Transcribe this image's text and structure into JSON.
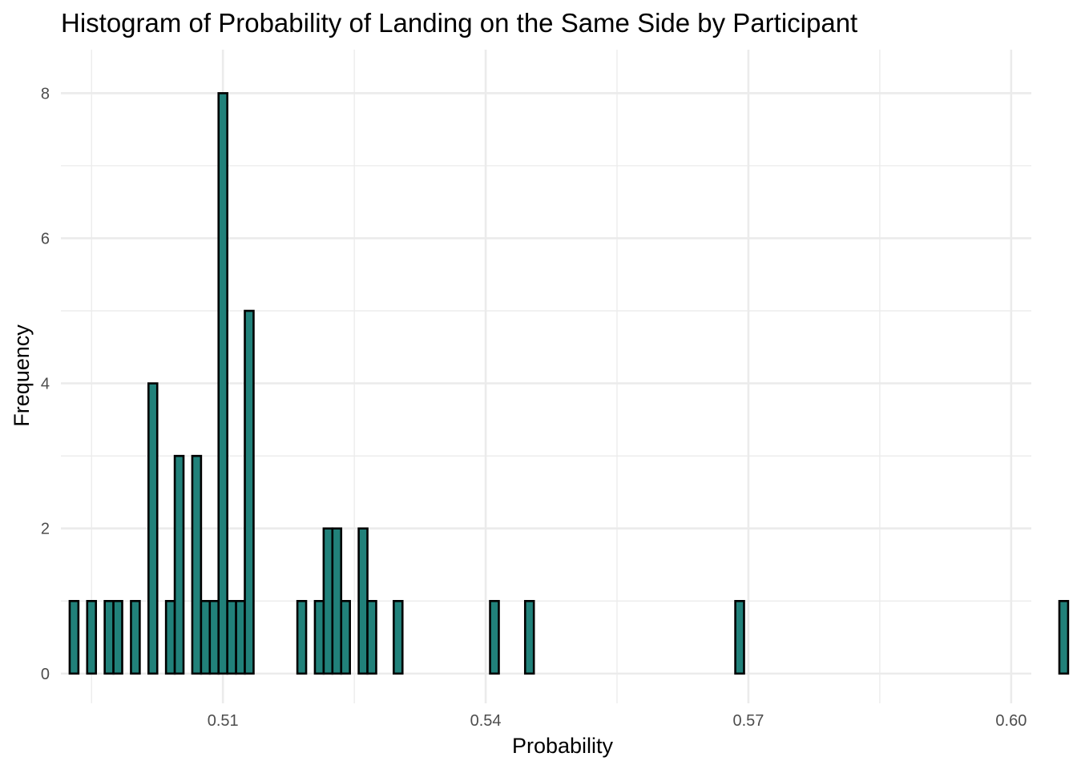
{
  "chart_data": {
    "type": "bar",
    "title": "Histogram of Probability of Landing on the Same Side by Participant",
    "xlabel": "Probability",
    "ylabel": "Frequency",
    "x_ticks": [
      0.51,
      0.54,
      0.57,
      0.6
    ],
    "x_tick_labels": [
      "0.51",
      "0.54",
      "0.57",
      "0.60"
    ],
    "y_ticks": [
      0,
      2,
      4,
      6,
      8
    ],
    "y_tick_labels": [
      "0",
      "2",
      "4",
      "6",
      "8"
    ],
    "xlim": [
      0.4915,
      0.6023
    ],
    "ylim": [
      -0.41,
      8.6
    ],
    "bin_width": 0.001,
    "bin_start": 0.4925,
    "counts": [
      1,
      0,
      1,
      0,
      1,
      1,
      0,
      1,
      0,
      4,
      0,
      1,
      3,
      0,
      3,
      1,
      1,
      8,
      1,
      1,
      5,
      0,
      0,
      0,
      0,
      0,
      1,
      0,
      1,
      2,
      2,
      1,
      0,
      2,
      1,
      0,
      0,
      1,
      0,
      0,
      0,
      0,
      0,
      0,
      0,
      0,
      0,
      0,
      1,
      0,
      0,
      0,
      1,
      0,
      0,
      0,
      0,
      0,
      0,
      0,
      0,
      0,
      0,
      0,
      0,
      0,
      0,
      0,
      0,
      0,
      0,
      0,
      0,
      0,
      0,
      0,
      1,
      0,
      0,
      0,
      0,
      0,
      0,
      0,
      0,
      0,
      0,
      0,
      0,
      0,
      0,
      0,
      0,
      0,
      0,
      0,
      0,
      0,
      0,
      0,
      0,
      0,
      0,
      0,
      0,
      0,
      0,
      0,
      0,
      0,
      0,
      0,
      0,
      1
    ],
    "bar_color": "#21817a",
    "bar_outline": "#000000",
    "grid": true,
    "legend": "none"
  }
}
